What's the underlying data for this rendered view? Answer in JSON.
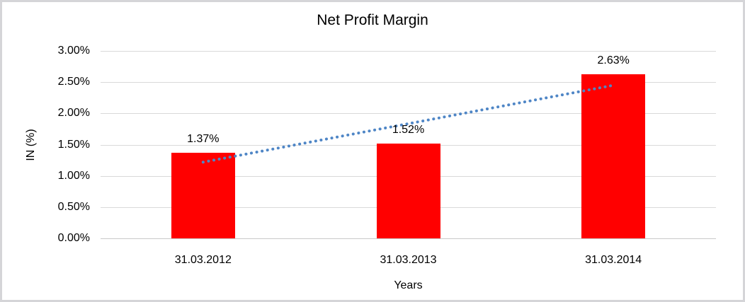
{
  "frame": {
    "background": "#ffffff",
    "border_color": "#d5d5d8"
  },
  "chart_data": {
    "type": "bar",
    "title": "Net Profit Margin",
    "xlabel": "Years",
    "ylabel": "IN (%)",
    "categories": [
      "31.03.2012",
      "31.03.2013",
      "31.03.2014"
    ],
    "series": [
      {
        "name": "Net Profit Margin",
        "values": [
          1.37,
          1.52,
          2.63
        ]
      }
    ],
    "data_labels": [
      "1.37%",
      "1.52%",
      "2.63%"
    ],
    "bar_color": "#ff0000",
    "ylim": [
      0,
      3.0
    ],
    "ytick_step": 0.5,
    "yticks": [
      {
        "value": 0.0,
        "label": "0.00%"
      },
      {
        "value": 0.5,
        "label": "0.50%"
      },
      {
        "value": 1.0,
        "label": "1.00%"
      },
      {
        "value": 1.5,
        "label": "1.50%"
      },
      {
        "value": 2.0,
        "label": "2.00%"
      },
      {
        "value": 2.5,
        "label": "2.50%"
      },
      {
        "value": 3.0,
        "label": "3.00%"
      }
    ],
    "grid": true,
    "gridline_color": "#d9d9d9",
    "legend": "none",
    "trendline": {
      "type": "linear",
      "style": "dotted",
      "color": "#4f86c6",
      "start_value": 1.22,
      "end_value": 2.45
    }
  }
}
